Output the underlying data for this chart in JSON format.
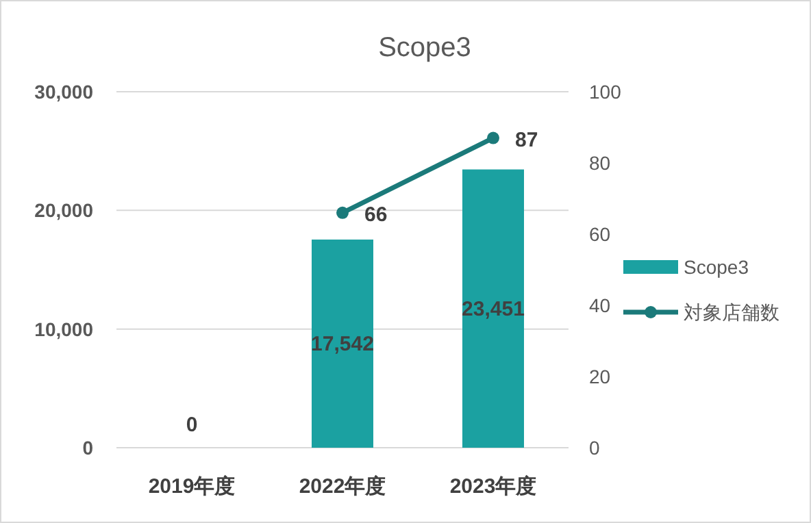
{
  "chart_data": {
    "type": "bar",
    "title": "Scope3",
    "categories": [
      "2019年度",
      "2022年度",
      "2023年度"
    ],
    "series": [
      {
        "name": "Scope3",
        "color": "#1ba1a1",
        "values": [
          0,
          17542,
          23451
        ],
        "value_labels": [
          "0",
          "17,542",
          "23,451"
        ]
      },
      {
        "name": "対象店舗数",
        "type": "line",
        "axis": "y2",
        "color": "#1b7a7a",
        "marker": "circle",
        "values": [
          null,
          66,
          87
        ],
        "value_labels": [
          null,
          "66",
          "87"
        ]
      }
    ],
    "ylim": [
      0,
      30000
    ],
    "yticks": [
      0,
      {
        "value": 10000,
        "label": "10,000"
      },
      {
        "value": 20000,
        "label": "20,000"
      },
      {
        "value": 30000,
        "label": "30,000"
      }
    ],
    "y2lim": [
      0,
      100
    ],
    "y2ticks": [
      0,
      20,
      40,
      60,
      80,
      100
    ],
    "grid": "y",
    "legend": "right"
  }
}
